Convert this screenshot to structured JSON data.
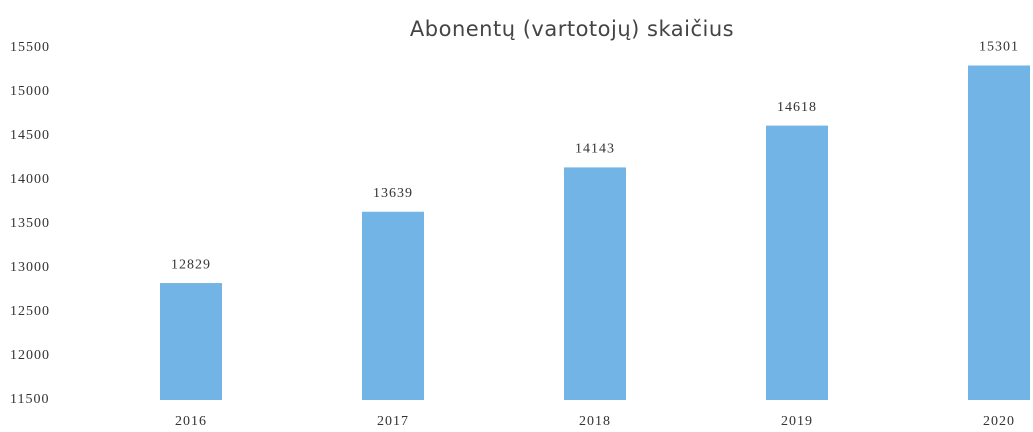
{
  "chart_data": {
    "type": "bar",
    "title": "Abonentų (vartotojų) skaičius",
    "categories": [
      "2016",
      "2017",
      "2018",
      "2019",
      "2020"
    ],
    "values": [
      12829,
      13639,
      14143,
      14618,
      15301
    ],
    "color": "#72b4e6",
    "ylim": [
      11500,
      15500
    ],
    "yticks": [
      11500,
      12000,
      12500,
      13000,
      13500,
      14000,
      14500,
      15000,
      15500
    ],
    "grid": false
  }
}
